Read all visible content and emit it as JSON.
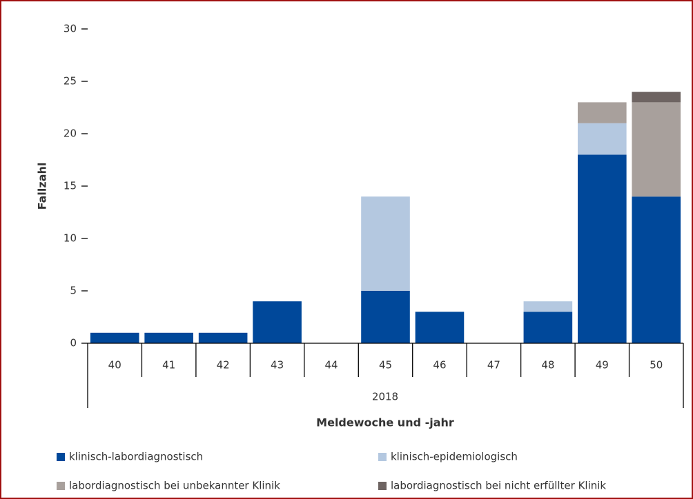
{
  "chart_data": {
    "type": "bar",
    "stacked": true,
    "y_label": "Fallzahl",
    "x_label": "Meldewoche und -jahr",
    "group_label": "2018",
    "categories": [
      "40",
      "41",
      "42",
      "43",
      "44",
      "45",
      "46",
      "47",
      "48",
      "49",
      "50"
    ],
    "series": [
      {
        "name": "klinisch-labordiagnostisch",
        "color": "#00489a",
        "values": [
          1,
          1,
          1,
          4,
          0,
          5,
          3,
          0,
          3,
          18,
          14
        ]
      },
      {
        "name": "klinisch-epidemiologisch",
        "color": "#b4c8e0",
        "values": [
          0,
          0,
          0,
          0,
          0,
          9,
          0,
          0,
          1,
          3,
          0
        ]
      },
      {
        "name": "labordiagnostisch bei unbekannter Klinik",
        "color": "#a8a09c",
        "values": [
          0,
          0,
          0,
          0,
          0,
          0,
          0,
          0,
          0,
          2,
          9
        ]
      },
      {
        "name": "labordiagnostisch bei nicht erfüllter Klinik",
        "color": "#6e6462",
        "values": [
          0,
          0,
          0,
          0,
          0,
          0,
          0,
          0,
          0,
          0,
          1
        ]
      }
    ],
    "ylim": [
      0,
      30
    ],
    "yticks": [
      0,
      5,
      10,
      15,
      20,
      25,
      30
    ]
  }
}
